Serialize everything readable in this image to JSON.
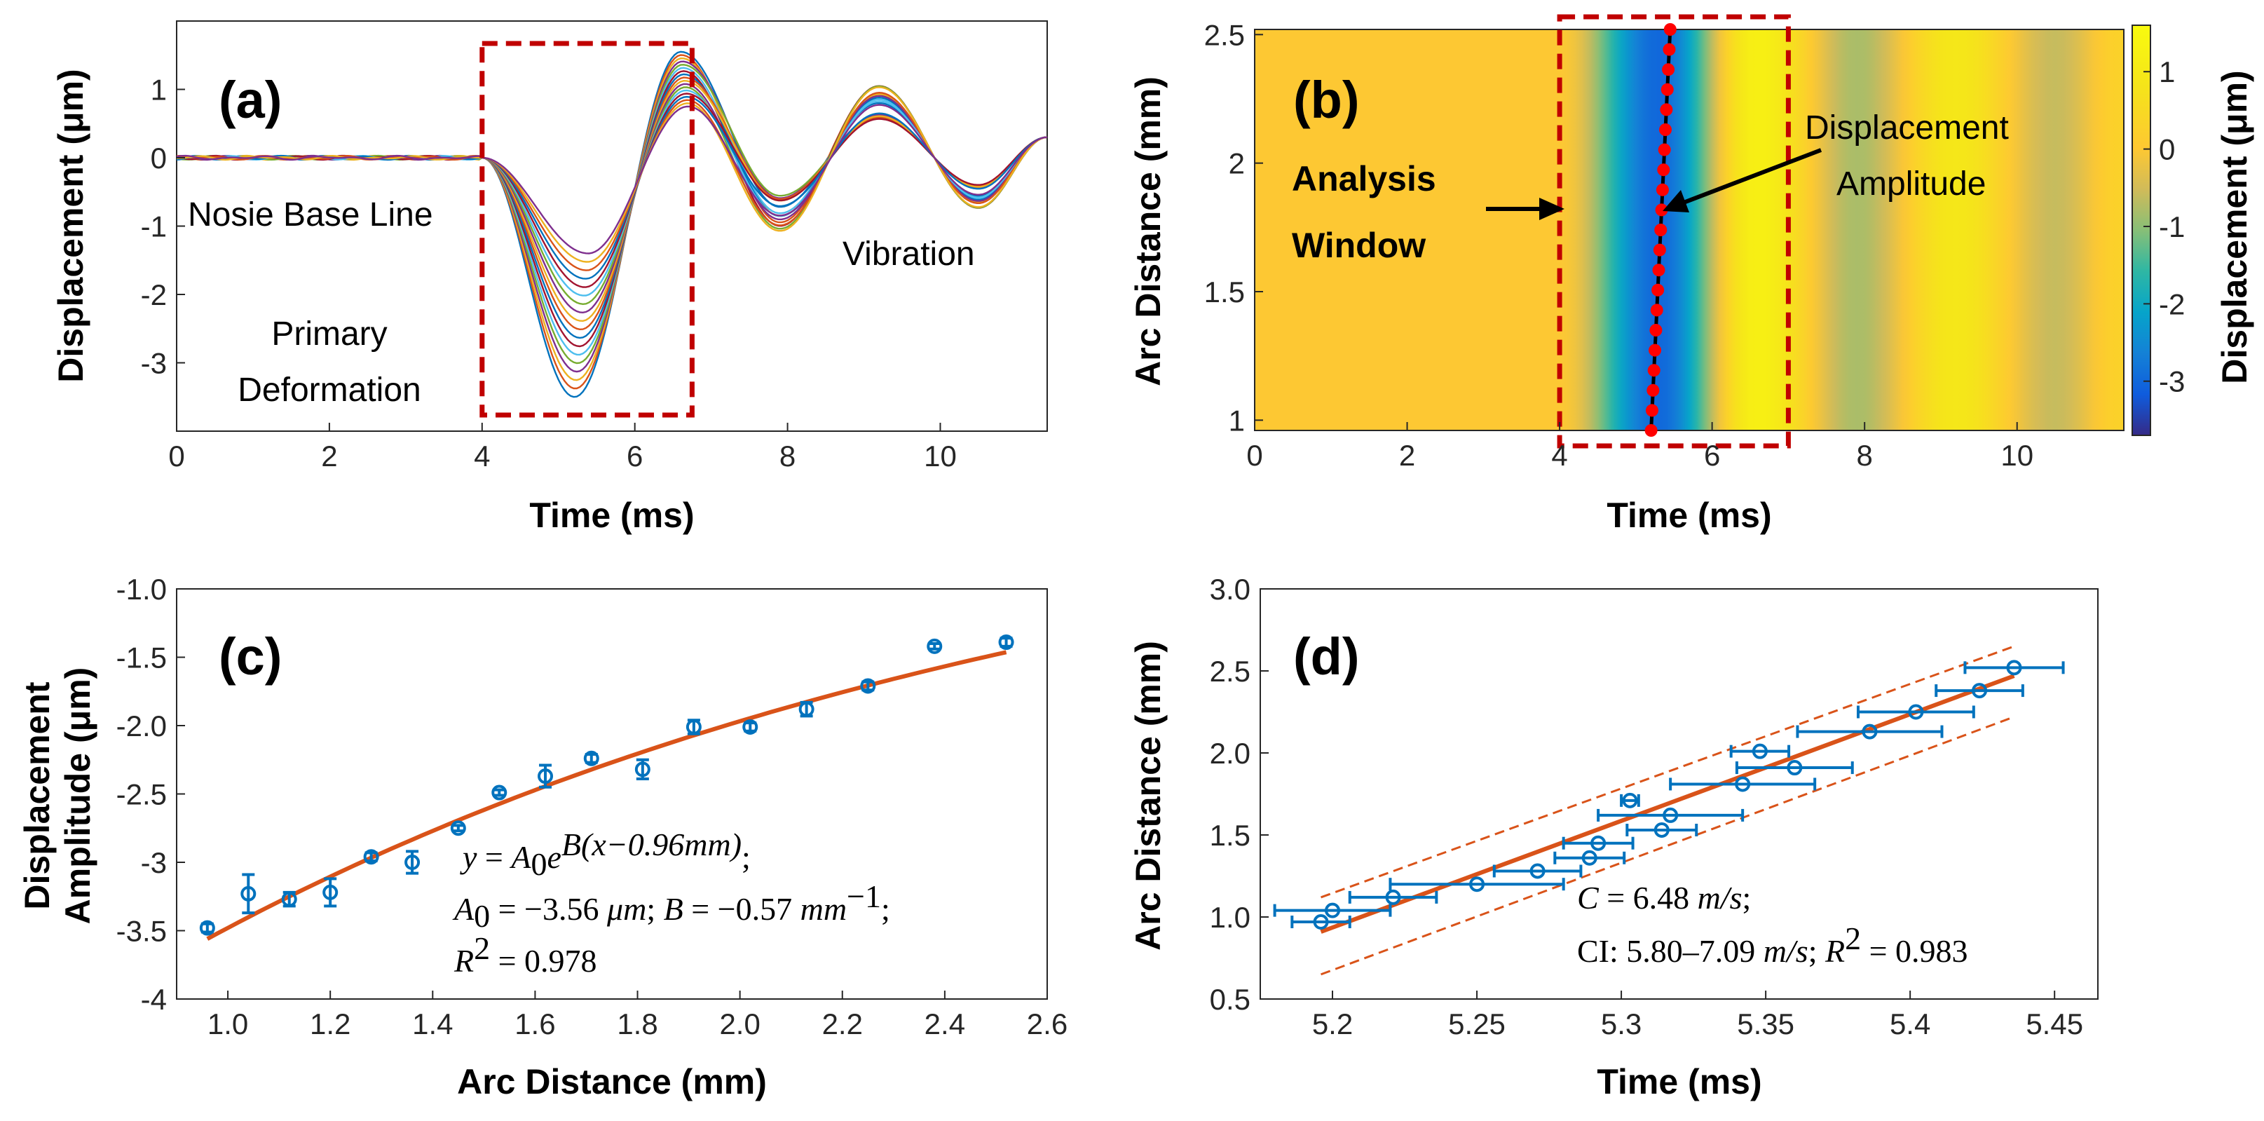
{
  "colors": {
    "fit": "#D95319",
    "marker": "#0072BD",
    "window": "#C00000",
    "track_dot": "#FF0000",
    "trace_palette": [
      "#0072BD",
      "#D95319",
      "#EDB120",
      "#7E2F8E",
      "#77AC30",
      "#4DBEEE",
      "#A2142F"
    ]
  },
  "chart_data": [
    {
      "id": "a",
      "type": "line",
      "panel_label": "(a)",
      "title": "",
      "xlabel": "Time (ms)",
      "ylabel": "Displacement (μm)",
      "xlim": [
        0,
        11.4
      ],
      "ylim": [
        -4,
        2
      ],
      "xticks": [
        0,
        2,
        4,
        6,
        8,
        10
      ],
      "yticks": [
        1,
        0,
        -1,
        -2,
        -3
      ],
      "ytick_labels": [
        "1",
        "0",
        "-1",
        "-2",
        "-3"
      ],
      "series_count": 18,
      "onset_ms": 4.0,
      "trough_time_ms": 5.3,
      "trough_range_um": [
        -3.5,
        -1.4
      ],
      "peak_time_ms": 6.65,
      "peak_range_um": [
        0.75,
        1.55
      ],
      "vibration": {
        "trough2_ms": 7.9,
        "trough2_um": -0.9,
        "peak2_ms": 9.2,
        "peak2_um": 1.0,
        "trough3_ms": 10.5,
        "trough3_um": -0.7,
        "end_um": 0.3
      },
      "analysis_window_ms": [
        4.0,
        6.75
      ],
      "annotations": [
        "Nosie Base Line",
        "Primary",
        "Deformation",
        "Vibration"
      ]
    },
    {
      "id": "b",
      "type": "heatmap",
      "panel_label": "(b)",
      "xlabel": "Time (ms)",
      "ylabel": "Arc Distance (mm)",
      "colorbar_label": "Displacement (μm)",
      "xlim": [
        0,
        11.4
      ],
      "ylim": [
        0.96,
        2.52
      ],
      "xticks": [
        0,
        2,
        4,
        6,
        8,
        10
      ],
      "yticks": [
        1,
        1.5,
        2,
        2.5
      ],
      "ytick_labels": [
        "1",
        "1.5",
        "2",
        "2.5"
      ],
      "clim": [
        -3.7,
        1.6
      ],
      "colorbar_ticks": [
        1,
        0,
        -1,
        -2,
        -3
      ],
      "colorbar_tick_labels": [
        "1",
        "0",
        "-1",
        "-2",
        "-3"
      ],
      "band_centers_ms": [
        {
          "t": 5.3,
          "v": -3.0
        },
        {
          "t": 6.6,
          "v": 1.2
        },
        {
          "t": 7.9,
          "v": -0.8
        },
        {
          "t": 9.2,
          "v": 0.9
        },
        {
          "t": 10.5,
          "v": -0.6
        }
      ],
      "analysis_window_ms": [
        4.0,
        7.0
      ],
      "track_time_ms": [
        5.2,
        5.45
      ],
      "track_points": 21,
      "annotations": {
        "window_line1": "Analysis",
        "window_line2": "Window",
        "amp_line1": "Displacement",
        "amp_line2": "Amplitude"
      }
    },
    {
      "id": "c",
      "type": "scatter",
      "panel_label": "(c)",
      "xlabel": "Arc Distance (mm)",
      "ylabel_line1": "Displacement",
      "ylabel_line2": "Amplitude (μm)",
      "xlim": [
        0.9,
        2.6
      ],
      "ylim": [
        -4,
        -1.0
      ],
      "xticks": [
        1.0,
        1.2,
        1.4,
        1.6,
        1.8,
        2.0,
        2.2,
        2.4,
        2.6
      ],
      "xtick_labels": [
        "1.0",
        "1.2",
        "1.4",
        "1.6",
        "1.8",
        "2.0",
        "2.2",
        "2.4",
        "2.6"
      ],
      "yticks": [
        -1.0,
        -1.5,
        -2.0,
        -2.5,
        -3,
        -3.5,
        -4
      ],
      "ytick_labels": [
        "-1.0",
        "-1.5",
        "-2.0",
        "-2.5",
        "-3",
        "-3.5",
        "-4"
      ],
      "x": [
        0.96,
        1.04,
        1.12,
        1.2,
        1.28,
        1.36,
        1.45,
        1.53,
        1.62,
        1.71,
        1.81,
        1.91,
        2.02,
        2.13,
        2.25,
        2.38,
        2.52
      ],
      "y": [
        -3.48,
        -3.23,
        -3.27,
        -3.22,
        -2.96,
        -3.0,
        -2.75,
        -2.49,
        -2.37,
        -2.24,
        -2.32,
        -2.01,
        -2.01,
        -1.88,
        -1.71,
        -1.42,
        -1.39
      ],
      "yerr": [
        0.03,
        0.14,
        0.05,
        0.1,
        0.03,
        0.08,
        0.02,
        0.02,
        0.08,
        0.03,
        0.07,
        0.05,
        0.03,
        0.05,
        0.03,
        0.02,
        0.03
      ],
      "fit": {
        "A0": -3.56,
        "B": -0.57,
        "x0": 0.96,
        "R2": 0.978
      },
      "equation": {
        "l1a": "y",
        "l1b": " = ",
        "l1c": "A",
        "l1d": "0",
        "l1e": "e",
        "l1f": "B(x−0.96mm)",
        "l1g": ";",
        "l2a": "A",
        "l2b": "0",
        "l2c": " = −3.56 ",
        "l2d": "μm",
        "l2e": "; ",
        "l2f": "B",
        "l2g": " = −0.57 ",
        "l2h": "mm",
        "l2i": "−1",
        "l2j": ";",
        "l3a": "R",
        "l3b": "2",
        "l3c": " = 0.978"
      }
    },
    {
      "id": "d",
      "type": "scatter",
      "panel_label": "(d)",
      "xlabel": "Time (ms)",
      "ylabel": "Arc Distance (mm)",
      "xlim": [
        5.175,
        5.465
      ],
      "ylim": [
        0.5,
        3.0
      ],
      "xticks": [
        5.2,
        5.25,
        5.3,
        5.35,
        5.4,
        5.45
      ],
      "xtick_labels": [
        "5.2",
        "5.25",
        "5.3",
        "5.35",
        "5.4",
        "5.45"
      ],
      "yticks": [
        3.0,
        2.5,
        2.0,
        1.5,
        1.0,
        0.5
      ],
      "ytick_labels": [
        "3.0",
        "2.5",
        "2.0",
        "1.5",
        "1.0",
        "0.5"
      ],
      "x": [
        5.196,
        5.2,
        5.221,
        5.25,
        5.271,
        5.289,
        5.292,
        5.303,
        5.314,
        5.317,
        5.342,
        5.348,
        5.36,
        5.386,
        5.402,
        5.424,
        5.436
      ],
      "y": [
        0.97,
        1.04,
        1.12,
        1.2,
        1.28,
        1.36,
        1.45,
        1.71,
        1.53,
        1.62,
        1.81,
        2.01,
        1.91,
        2.13,
        2.25,
        2.38,
        2.52
      ],
      "xerr": [
        0.01,
        0.02,
        0.015,
        0.03,
        0.015,
        0.012,
        0.012,
        0.003,
        0.012,
        0.025,
        0.025,
        0.01,
        0.02,
        0.025,
        0.02,
        0.015,
        0.017
      ],
      "fit": {
        "x": [
          5.196,
          5.436
        ],
        "y": [
          0.91,
          2.47
        ]
      },
      "ci_upper": {
        "x": [
          5.196,
          5.436
        ],
        "y": [
          1.12,
          2.65
        ]
      },
      "ci_lower": {
        "x": [
          5.196,
          5.436
        ],
        "y": [
          0.65,
          2.22
        ]
      },
      "equation": {
        "l1a": "C",
        "l1b": " = 6.48 ",
        "l1c": "m/s",
        "l1d": ";",
        "l2a": "CI: 5.80–7.09 ",
        "l2b": "m/s",
        "l2c": "; ",
        "l2d": "R",
        "l2e": "2",
        "l2f": " = 0.983"
      }
    }
  ]
}
